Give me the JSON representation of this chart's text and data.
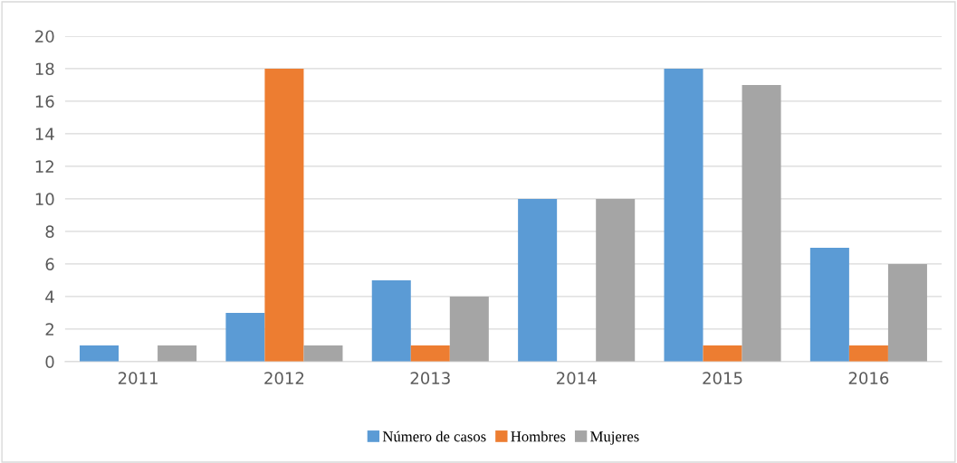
{
  "chart_data": {
    "type": "bar",
    "categories": [
      "2011",
      "2012",
      "2013",
      "2014",
      "2015",
      "2016"
    ],
    "series": [
      {
        "name": "Número de casos",
        "color": "#5b9bd5",
        "values": [
          1,
          3,
          5,
          10,
          18,
          7
        ]
      },
      {
        "name": "Hombres",
        "color": "#ed7d31",
        "values": [
          0,
          18,
          1,
          0,
          1,
          1
        ]
      },
      {
        "name": "Mujeres",
        "color": "#a5a5a5",
        "values": [
          1,
          1,
          4,
          10,
          17,
          6
        ]
      }
    ],
    "ylim": [
      0,
      20
    ],
    "yticks": [
      0,
      2,
      4,
      6,
      8,
      10,
      12,
      14,
      16,
      18,
      20
    ],
    "grid": "y",
    "legend": "bottom"
  }
}
